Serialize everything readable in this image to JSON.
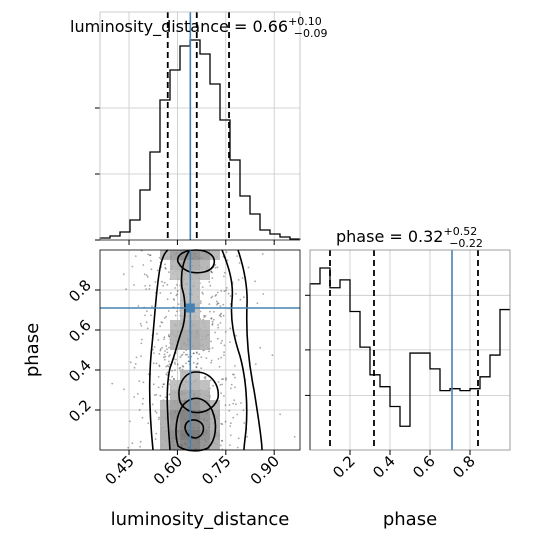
{
  "chart_data": {
    "type": "corner",
    "parameters": [
      "luminosity_distance",
      "phase"
    ],
    "truth": {
      "luminosity_distance": 0.64,
      "phase": 0.71
    },
    "titles": {
      "luminosity_distance": {
        "prefix": "luminosity_distance = 0.66",
        "plus": "+0.10",
        "minus": "−0.09"
      },
      "phase": {
        "prefix": "phase = 0.32",
        "plus": "+0.52",
        "minus": "−0.22"
      }
    },
    "xlabels": {
      "luminosity_distance": "luminosity_distance",
      "phase": "phase"
    },
    "ylabel": "phase",
    "ranges": {
      "luminosity_distance": [
        0.36,
        0.98
      ],
      "phase": [
        0.0,
        1.0
      ]
    },
    "ticks": {
      "luminosity_distance": {
        "values": [
          0.45,
          0.6,
          0.75,
          0.9
        ],
        "labels": [
          "0.45",
          "0.60",
          "0.75",
          "0.90"
        ]
      },
      "phase": {
        "values": [
          0.2,
          0.4,
          0.6,
          0.8
        ],
        "labels": [
          "0.2",
          "0.4",
          "0.6",
          "0.8"
        ]
      }
    },
    "quantiles": {
      "luminosity_distance": [
        0.57,
        0.66,
        0.76
      ],
      "phase": [
        0.1,
        0.32,
        0.84
      ]
    },
    "hist_luminosity_distance": {
      "bin_edges": [
        0.36,
        0.391,
        0.422,
        0.453,
        0.484,
        0.515,
        0.546,
        0.577,
        0.608,
        0.639,
        0.67,
        0.701,
        0.732,
        0.763,
        0.794,
        0.825,
        0.856,
        0.887,
        0.918,
        0.949,
        0.98
      ],
      "counts": [
        0.01,
        0.02,
        0.04,
        0.1,
        0.25,
        0.44,
        0.7,
        0.85,
        0.97,
        1.0,
        0.93,
        0.78,
        0.6,
        0.4,
        0.22,
        0.13,
        0.05,
        0.03,
        0.015,
        0.005
      ]
    },
    "hist_phase": {
      "bin_edges": [
        0.0,
        0.05,
        0.1,
        0.15,
        0.2,
        0.25,
        0.3,
        0.35,
        0.4,
        0.45,
        0.5,
        0.55,
        0.6,
        0.65,
        0.7,
        0.75,
        0.8,
        0.85,
        0.9,
        0.95,
        1.0
      ],
      "counts": [
        0.84,
        0.92,
        0.82,
        0.86,
        0.7,
        0.52,
        0.38,
        0.32,
        0.22,
        0.12,
        0.49,
        0.49,
        0.41,
        0.3,
        0.31,
        0.3,
        0.31,
        0.37,
        0.48,
        0.71
      ]
    }
  }
}
